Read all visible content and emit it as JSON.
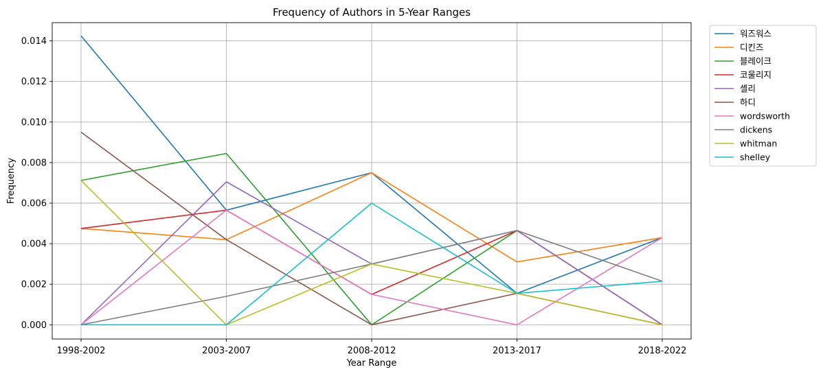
{
  "chart_data": {
    "type": "line",
    "title": "Frequency of Authors in 5-Year Ranges",
    "xlabel": "Year Range",
    "ylabel": "Frequency",
    "categories": [
      "1998-2002",
      "2003-2007",
      "2008-2012",
      "2013-2017",
      "2018-2022"
    ],
    "ylim": [
      -0.0007,
      0.0149
    ],
    "yticks": [
      "0.000",
      "0.002",
      "0.004",
      "0.006",
      "0.008",
      "0.010",
      "0.012",
      "0.014"
    ],
    "grid": true,
    "legend_position": "outside-top-right",
    "series": [
      {
        "name": "워즈워스",
        "color": "#1f77b4",
        "values": [
          0.01425,
          0.00565,
          0.0075,
          0.00155,
          0.0043
        ]
      },
      {
        "name": "디킨즈",
        "color": "#ff7f0e",
        "values": [
          0.00475,
          0.0042,
          0.0075,
          0.0031,
          0.0043
        ]
      },
      {
        "name": "블레이크",
        "color": "#2ca02c",
        "values": [
          0.00712,
          0.00845,
          0.0,
          0.00465,
          0.0
        ]
      },
      {
        "name": "코울리지",
        "color": "#d62728",
        "values": [
          0.00475,
          0.00565,
          0.0015,
          0.00465,
          0.0
        ]
      },
      {
        "name": "셸리",
        "color": "#9467bd",
        "values": [
          0.0,
          0.00705,
          0.003,
          0.00465,
          0.0
        ]
      },
      {
        "name": "하디",
        "color": "#8c564b",
        "values": [
          0.0095,
          0.0042,
          0.0,
          0.00155,
          0.0
        ]
      },
      {
        "name": "wordsworth",
        "color": "#e377c2",
        "values": [
          0.0,
          0.00565,
          0.0015,
          0.0,
          0.0043
        ]
      },
      {
        "name": "dickens",
        "color": "#7f7f7f",
        "values": [
          0.0,
          0.0014,
          0.003,
          0.00465,
          0.00215
        ]
      },
      {
        "name": "whitman",
        "color": "#bcbd22",
        "values": [
          0.00712,
          0.0,
          0.003,
          0.00155,
          0.0
        ]
      },
      {
        "name": "shelley",
        "color": "#17becf",
        "values": [
          0.0,
          0.0,
          0.006,
          0.00155,
          0.00215
        ]
      }
    ]
  }
}
